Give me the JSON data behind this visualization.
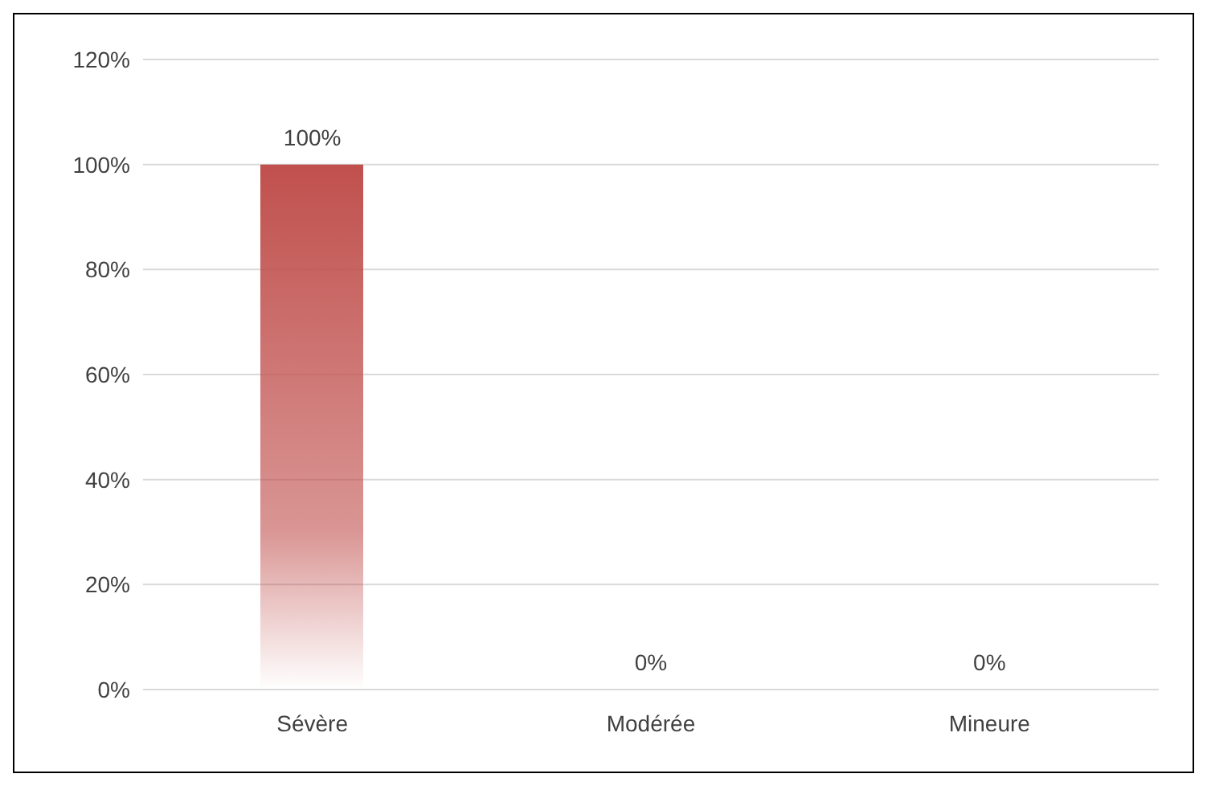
{
  "chart_data": {
    "type": "bar",
    "categories": [
      "Sévère",
      "Modérée",
      "Mineure"
    ],
    "values": [
      100,
      0,
      0
    ],
    "color": "#c0504d",
    "value_labels": [
      "100%",
      "0%",
      "0%"
    ],
    "ylim": [
      0,
      120
    ],
    "yticks": [
      {
        "value": 0,
        "label": "0%"
      },
      {
        "value": 20,
        "label": "20%"
      },
      {
        "value": 40,
        "label": "40%"
      },
      {
        "value": 60,
        "label": "60%"
      },
      {
        "value": 80,
        "label": "80%"
      },
      {
        "value": 100,
        "label": "100%"
      },
      {
        "value": 120,
        "label": "120%"
      }
    ],
    "grid": "y",
    "legend": false
  }
}
